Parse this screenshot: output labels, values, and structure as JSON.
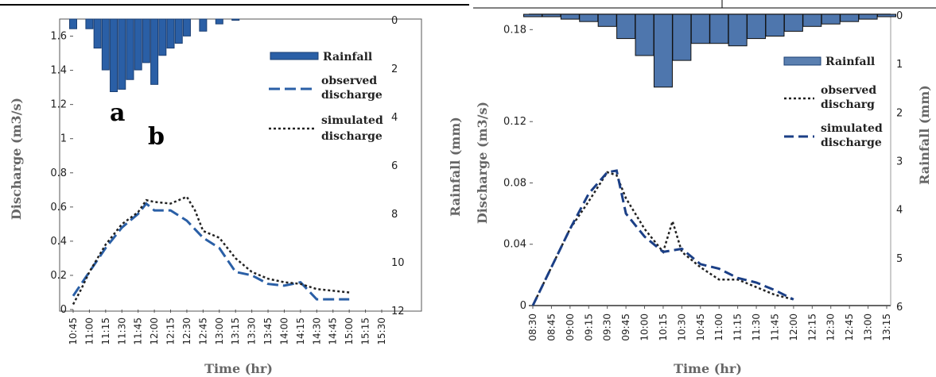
{
  "chart_data": [
    {
      "type": "bar+line",
      "panel_labels": [
        "a",
        "b"
      ],
      "xlabel": "Time (hr)",
      "ylabel": "Discharge (m3/s)",
      "y2label": "Rainfall (mm)",
      "x": [
        "10:45",
        "11:00",
        "11:15",
        "11:30",
        "11:45",
        "12:00",
        "12:15",
        "12:30",
        "12:45",
        "13:00",
        "13:15",
        "13:30",
        "13:45",
        "14:00",
        "14:15",
        "14:30",
        "14:45",
        "15:00",
        "15:15",
        "15:30"
      ],
      "ylim": [
        0,
        1.7
      ],
      "y_ticks": [
        "0",
        "0.2",
        "0.4",
        "0.6",
        "0.8",
        "1",
        "1.2",
        "1.4",
        "1.6"
      ],
      "y2lim": [
        0,
        12
      ],
      "y2_ticks": [
        "0",
        "2",
        "4",
        "6",
        "8",
        "10",
        "12"
      ],
      "rainfall": [
        0.4,
        0.4,
        1.2,
        2.1,
        3.0,
        2.9,
        2.5,
        2.1,
        1.8,
        2.7,
        1.5,
        1.2,
        1.0,
        0.7,
        0.5,
        0.2,
        0.05,
        0,
        0,
        0
      ],
      "bar_x": [
        10.75,
        11.0,
        11.125,
        11.25,
        11.375,
        11.5,
        11.625,
        11.75,
        11.875,
        12.0,
        12.125,
        12.25,
        12.375,
        12.5,
        12.75,
        13.0,
        13.25,
        13.5,
        14.0,
        14.5
      ],
      "series": [
        {
          "name": "observed discharge",
          "x": [
            10.75,
            10.875,
            11.0,
            11.25,
            11.5,
            11.75,
            11.875,
            12.0,
            12.25,
            12.5,
            12.75,
            13.0,
            13.25,
            13.5,
            13.75,
            14.0,
            14.25,
            14.5,
            15.0
          ],
          "values": [
            0.08,
            0.15,
            0.22,
            0.36,
            0.48,
            0.56,
            0.62,
            0.58,
            0.58,
            0.52,
            0.42,
            0.36,
            0.22,
            0.2,
            0.15,
            0.14,
            0.16,
            0.06,
            0.06
          ]
        },
        {
          "name": "simulated discharge",
          "x": [
            10.75,
            10.875,
            11.0,
            11.25,
            11.5,
            11.75,
            11.875,
            12.0,
            12.25,
            12.5,
            12.625,
            12.75,
            13.0,
            13.25,
            13.5,
            13.75,
            14.0,
            14.25,
            14.5,
            15.0
          ],
          "values": [
            0.03,
            0.12,
            0.22,
            0.38,
            0.5,
            0.57,
            0.64,
            0.63,
            0.62,
            0.66,
            0.58,
            0.46,
            0.42,
            0.3,
            0.22,
            0.18,
            0.16,
            0.15,
            0.12,
            0.1
          ]
        }
      ]
    },
    {
      "type": "bar+line",
      "xlabel": "Time (hr)",
      "ylabel": "Discharge (m3/s)",
      "y2label": "Rainfall (mm)",
      "x": [
        "08:30",
        "08:45",
        "09:00",
        "09:15",
        "09:30",
        "09:45",
        "10:00",
        "10:15",
        "10:30",
        "10:45",
        "11:00",
        "11:15",
        "11:30",
        "11:45",
        "12:00",
        "12:15",
        "12:30",
        "12:45",
        "13:00",
        "13:15"
      ],
      "ylim": [
        0,
        0.19
      ],
      "y_ticks": [
        "0",
        "0.04",
        "0.08",
        "0.12",
        "0.18"
      ],
      "y2lim": [
        0,
        6
      ],
      "y2_ticks": [
        "0",
        "1",
        "2",
        "3",
        "4",
        "5",
        "6"
      ],
      "rainfall": [
        0.05,
        0.05,
        0.1,
        0.15,
        0.25,
        0.5,
        0.85,
        1.5,
        0.95,
        0.6,
        0.6,
        0.65,
        0.5,
        0.45,
        0.35,
        0.25,
        0.2,
        0.15,
        0.1,
        0.05
      ],
      "series": [
        {
          "name": "observed discharg",
          "x": [
            8.5,
            8.75,
            9.0,
            9.25,
            9.5,
            9.625,
            9.75,
            10.0,
            10.25,
            10.375,
            10.5,
            10.75,
            11.0,
            11.25,
            11.5,
            11.75,
            12.0
          ],
          "values": [
            0.0,
            0.025,
            0.05,
            0.068,
            0.087,
            0.085,
            0.07,
            0.05,
            0.035,
            0.055,
            0.035,
            0.025,
            0.017,
            0.017,
            0.012,
            0.007,
            0.004
          ]
        },
        {
          "name": "simulated discharge",
          "x": [
            8.5,
            8.75,
            9.0,
            9.25,
            9.5,
            9.625,
            9.75,
            10.0,
            10.25,
            10.5,
            10.75,
            11.0,
            11.25,
            11.5,
            11.75,
            12.0
          ],
          "values": [
            0.0,
            0.025,
            0.05,
            0.073,
            0.087,
            0.088,
            0.06,
            0.045,
            0.035,
            0.037,
            0.027,
            0.024,
            0.018,
            0.015,
            0.01,
            0.004
          ]
        }
      ]
    }
  ]
}
